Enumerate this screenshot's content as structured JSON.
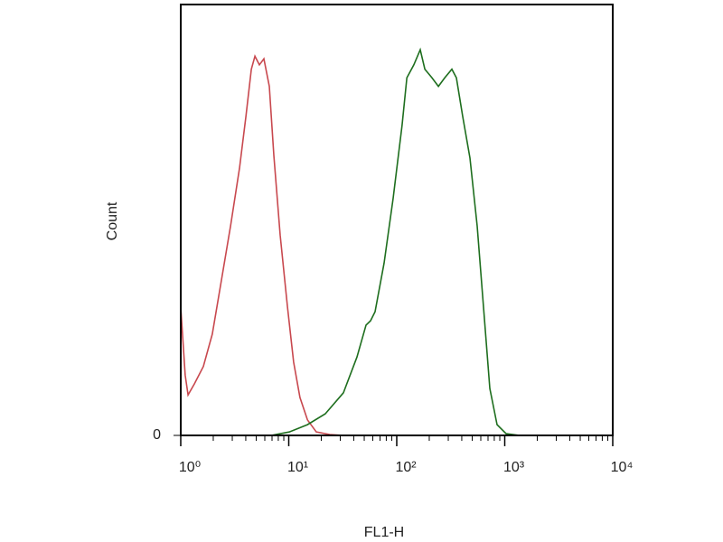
{
  "chart_data": {
    "type": "line",
    "x_label": "FL1-H",
    "y_label": "Count",
    "xlim": [
      1,
      10000
    ],
    "xscale": "log",
    "xticks": [
      {
        "value": 1,
        "label": "10⁰"
      },
      {
        "value": 10,
        "label": "10¹"
      },
      {
        "value": 100,
        "label": "10²"
      },
      {
        "value": 1000,
        "label": "10³"
      },
      {
        "value": 10000,
        "label": "10⁴"
      }
    ],
    "ylim": [
      0,
      100
    ],
    "yticks": [
      0
    ],
    "series": [
      {
        "color": "#c8484e",
        "x": [
          1,
          1.1,
          1.17,
          1.34,
          1.62,
          1.96,
          2.38,
          2.89,
          3.5,
          4.01,
          4.5,
          4.86,
          5.35,
          5.89,
          6.61,
          7.28,
          8.33,
          9.71,
          11.1,
          12.7,
          14.9,
          18,
          24,
          32.1,
          10000
        ],
        "values": [
          29.8,
          14,
          9.4,
          12,
          16,
          23.5,
          36,
          48.6,
          62,
          74,
          85,
          88,
          86,
          87.4,
          81,
          65,
          46.5,
          30,
          17,
          8.8,
          3.6,
          0.8,
          0.2,
          0,
          0
        ]
      },
      {
        "color": "#1e6e1e",
        "x": [
          1,
          6.87,
          10.1,
          14.9,
          21.8,
          32.1,
          42.8,
          51.9,
          57.2,
          63,
          76.4,
          92.6,
          112,
          124,
          144,
          165,
          182,
          212,
          243,
          278,
          324,
          357,
          408,
          476,
          556,
          636,
          728,
          849,
          1030,
          1374,
          10000
        ],
        "values": [
          0,
          0,
          0.8,
          2.5,
          5,
          9.9,
          18.2,
          25.6,
          26.6,
          28.7,
          40,
          55,
          72,
          83,
          86,
          89.5,
          85,
          83,
          81,
          83,
          85,
          83,
          74,
          64.4,
          48.6,
          29.8,
          10.9,
          2.5,
          0.4,
          0,
          0
        ]
      }
    ]
  }
}
